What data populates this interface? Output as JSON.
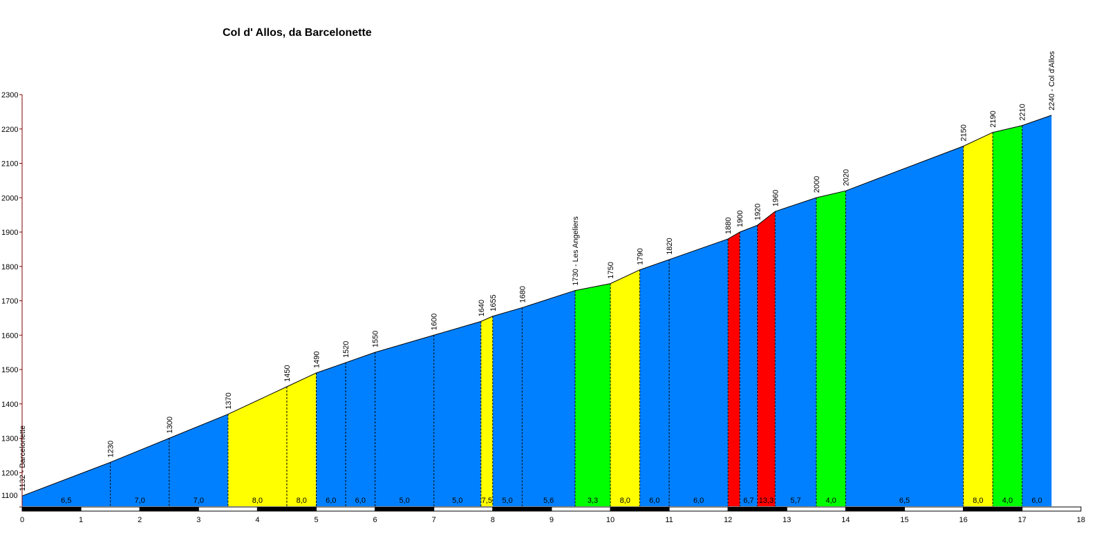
{
  "chart_data": {
    "type": "area",
    "title": "Col d' Allos, da Barcelonette",
    "xlabel": "",
    "ylabel": "",
    "xlim": [
      0,
      18
    ],
    "ylim": [
      1100,
      2300
    ],
    "x_ticks": [
      0,
      1,
      2,
      3,
      4,
      5,
      6,
      7,
      8,
      9,
      10,
      11,
      12,
      13,
      14,
      15,
      16,
      17,
      18
    ],
    "y_ticks": [
      1100,
      1200,
      1300,
      1400,
      1500,
      1600,
      1700,
      1800,
      1900,
      2000,
      2100,
      2200,
      2300
    ],
    "grid": false,
    "legend": "none",
    "gradient_colors": {
      "blue": "#0080ff",
      "yellow": "#ffff00",
      "green": "#00ff00",
      "red": "#ff0000"
    },
    "points": [
      {
        "x": 0.0,
        "y": 1132,
        "label": "1132 - Barcelonette"
      },
      {
        "x": 1.5,
        "y": 1230,
        "label": "1230"
      },
      {
        "x": 2.5,
        "y": 1300,
        "label": "1300"
      },
      {
        "x": 3.5,
        "y": 1370,
        "label": "1370"
      },
      {
        "x": 4.5,
        "y": 1450,
        "label": "1450"
      },
      {
        "x": 5.0,
        "y": 1490,
        "label": "1490"
      },
      {
        "x": 5.5,
        "y": 1520,
        "label": "1520"
      },
      {
        "x": 6.0,
        "y": 1550,
        "label": "1550"
      },
      {
        "x": 7.0,
        "y": 1600,
        "label": "1600"
      },
      {
        "x": 7.8,
        "y": 1640,
        "label": "1640"
      },
      {
        "x": 8.0,
        "y": 1655,
        "label": "1655"
      },
      {
        "x": 8.5,
        "y": 1680,
        "label": "1680"
      },
      {
        "x": 9.4,
        "y": 1730,
        "label": "1730 - Les Angeliers"
      },
      {
        "x": 10.0,
        "y": 1750,
        "label": "1750"
      },
      {
        "x": 10.5,
        "y": 1790,
        "label": "1790"
      },
      {
        "x": 11.0,
        "y": 1820,
        "label": "1820"
      },
      {
        "x": 12.0,
        "y": 1880,
        "label": "1880"
      },
      {
        "x": 12.2,
        "y": 1900,
        "label": "1900"
      },
      {
        "x": 12.5,
        "y": 1920,
        "label": "1920"
      },
      {
        "x": 12.8,
        "y": 1960,
        "label": "1960"
      },
      {
        "x": 13.5,
        "y": 2000,
        "label": "2000"
      },
      {
        "x": 14.0,
        "y": 2020,
        "label": "2020"
      },
      {
        "x": 16.0,
        "y": 2150,
        "label": "2150"
      },
      {
        "x": 16.5,
        "y": 2190,
        "label": "2190"
      },
      {
        "x": 17.0,
        "y": 2210,
        "label": "2210"
      },
      {
        "x": 17.5,
        "y": 2240,
        "label": "2240 - Col d'Allos"
      }
    ],
    "segments": [
      {
        "grade": "6,5",
        "color": "blue"
      },
      {
        "grade": "7,0",
        "color": "blue"
      },
      {
        "grade": "7,0",
        "color": "blue"
      },
      {
        "grade": "8,0",
        "color": "yellow"
      },
      {
        "grade": "8,0",
        "color": "yellow"
      },
      {
        "grade": "6,0",
        "color": "blue"
      },
      {
        "grade": "6,0",
        "color": "blue"
      },
      {
        "grade": "5,0",
        "color": "blue"
      },
      {
        "grade": "5,0",
        "color": "blue"
      },
      {
        "grade": "7,5",
        "color": "yellow"
      },
      {
        "grade": "5,0",
        "color": "blue"
      },
      {
        "grade": "5,6",
        "color": "blue"
      },
      {
        "grade": "3,3",
        "color": "green"
      },
      {
        "grade": "8,0",
        "color": "yellow"
      },
      {
        "grade": "6,0",
        "color": "blue"
      },
      {
        "grade": "6,0",
        "color": "blue"
      },
      {
        "grade": "",
        "color": "red"
      },
      {
        "grade": "6,7",
        "color": "blue"
      },
      {
        "grade": "13,3",
        "color": "red"
      },
      {
        "grade": "5,7",
        "color": "blue"
      },
      {
        "grade": "4,0",
        "color": "green"
      },
      {
        "grade": "6,5",
        "color": "blue"
      },
      {
        "grade": "8,0",
        "color": "yellow"
      },
      {
        "grade": "4,0",
        "color": "green"
      },
      {
        "grade": "6,0",
        "color": "blue"
      }
    ]
  }
}
